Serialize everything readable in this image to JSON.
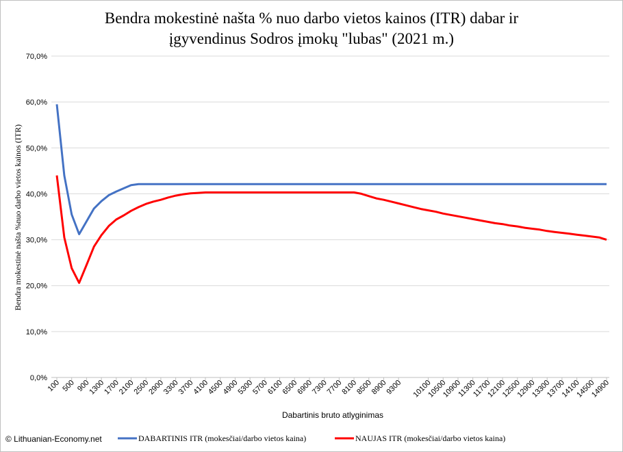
{
  "chart_data": {
    "type": "line",
    "title_line1": "Bendra mokestinė našta % nuo darbo vietos kainos (ITR) dabar ir",
    "title_line2": "įgyvendinus Sodros įmokų \"lubas\" (2021 m.)",
    "xlabel": "Dabartinis bruto atlyginimas",
    "ylabel": "Bendra mokestinė našta %nuo darbo vietos kainos (ITR)",
    "ylim": [
      0,
      70
    ],
    "y_ticks": [
      "0,0%",
      "10,0%",
      "20,0%",
      "30,0%",
      "40,0%",
      "50,0%",
      "60,0%",
      "70,0%"
    ],
    "grid": true,
    "legend_placement": "bottom",
    "x": [
      100,
      300,
      500,
      700,
      900,
      1100,
      1300,
      1500,
      1700,
      1900,
      2100,
      2300,
      2500,
      2700,
      2900,
      3100,
      3300,
      3500,
      3700,
      3900,
      4100,
      4300,
      4500,
      4700,
      4900,
      5100,
      5300,
      5500,
      5700,
      5900,
      6100,
      6300,
      6500,
      6700,
      6900,
      7100,
      7300,
      7500,
      7700,
      7900,
      8100,
      8300,
      8500,
      8700,
      8900,
      9100,
      9300,
      9500,
      9700,
      9900,
      10100,
      10300,
      10500,
      10700,
      10900,
      11100,
      11300,
      11500,
      11700,
      11900,
      12100,
      12300,
      12500,
      12700,
      12900,
      13100,
      13300,
      13500,
      13700,
      13900,
      14100,
      14300,
      14500,
      14700,
      14900
    ],
    "x_tick_labels": [
      "100",
      "500",
      "900",
      "1300",
      "1700",
      "2100",
      "2500",
      "2900",
      "3300",
      "3700",
      "4100",
      "4500",
      "4900",
      "5300",
      "5700",
      "6100",
      "6500",
      "6900",
      "7300",
      "7700",
      "8100",
      "8500",
      "8900",
      "9300",
      "10100",
      "10500",
      "10900",
      "11300",
      "11700",
      "12100",
      "12500",
      "12900",
      "13300",
      "13700",
      "14100",
      "14500",
      "14900"
    ],
    "series": [
      {
        "name": "DABARTINIS ITR (mokesčiai/darbo vietos kaina)",
        "color": "#4472c4",
        "values": [
          59.5,
          44.0,
          35.5,
          31.2,
          34.0,
          36.8,
          38.4,
          39.7,
          40.5,
          41.2,
          41.9,
          42.1,
          42.1,
          42.1,
          42.1,
          42.1,
          42.1,
          42.1,
          42.1,
          42.1,
          42.1,
          42.1,
          42.1,
          42.1,
          42.1,
          42.1,
          42.1,
          42.1,
          42.1,
          42.1,
          42.1,
          42.1,
          42.1,
          42.1,
          42.1,
          42.1,
          42.1,
          42.1,
          42.1,
          42.1,
          42.1,
          42.1,
          42.1,
          42.1,
          42.1,
          42.1,
          42.1,
          42.1,
          42.1,
          42.1,
          42.1,
          42.1,
          42.1,
          42.1,
          42.1,
          42.1,
          42.1,
          42.1,
          42.1,
          42.1,
          42.1,
          42.1,
          42.1,
          42.1,
          42.1,
          42.1,
          42.1,
          42.1,
          42.1,
          42.1,
          42.1,
          42.1,
          42.1,
          42.1,
          42.1
        ]
      },
      {
        "name": "NAUJAS ITR (mokesčiai/darbo vietos kaina)",
        "color": "#ff0000",
        "values": [
          44.0,
          30.5,
          23.8,
          20.6,
          24.5,
          28.5,
          31.0,
          33.0,
          34.4,
          35.3,
          36.3,
          37.1,
          37.8,
          38.3,
          38.7,
          39.2,
          39.6,
          39.9,
          40.1,
          40.2,
          40.3,
          40.3,
          40.3,
          40.3,
          40.3,
          40.3,
          40.3,
          40.3,
          40.3,
          40.3,
          40.3,
          40.3,
          40.3,
          40.3,
          40.3,
          40.3,
          40.3,
          40.3,
          40.3,
          40.3,
          40.3,
          40.0,
          39.5,
          39.0,
          38.7,
          38.3,
          37.9,
          37.5,
          37.1,
          36.7,
          36.4,
          36.1,
          35.7,
          35.4,
          35.1,
          34.8,
          34.5,
          34.2,
          33.9,
          33.6,
          33.4,
          33.1,
          32.9,
          32.6,
          32.4,
          32.2,
          31.9,
          31.7,
          31.5,
          31.3,
          31.1,
          30.9,
          30.7,
          30.5,
          30.0
        ]
      }
    ]
  },
  "legend": {
    "current_label": "DABARTINIS ITR (mokesčiai/darbo vietos kaina)",
    "new_label": "NAUJAS ITR (mokesčiai/darbo vietos kaina)"
  },
  "copyright": "© Lithuanian-Economy.net"
}
